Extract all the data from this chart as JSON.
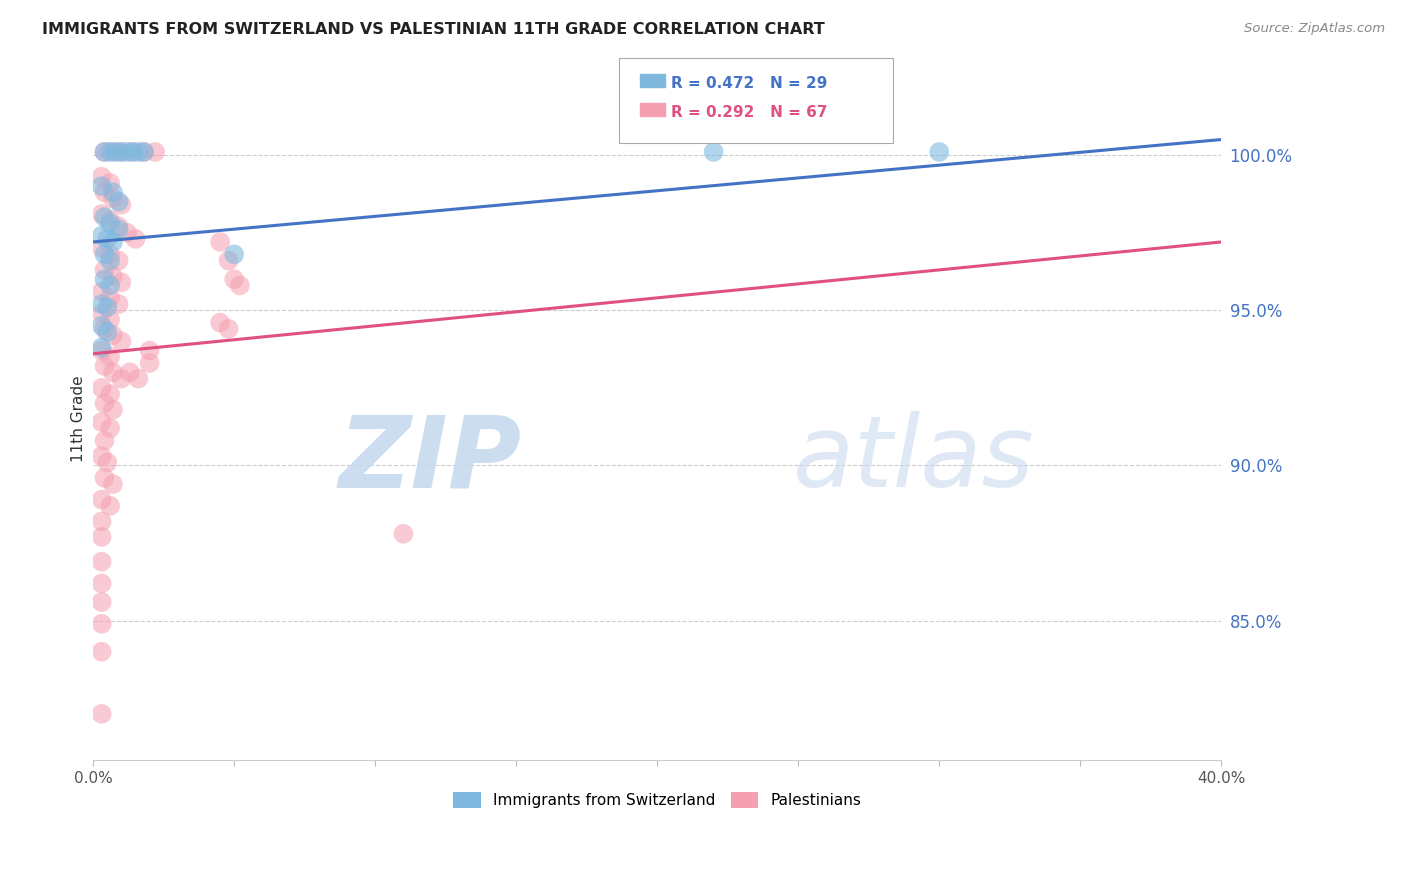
{
  "title": "IMMIGRANTS FROM SWITZERLAND VS PALESTINIAN 11TH GRADE CORRELATION CHART",
  "source": "Source: ZipAtlas.com",
  "ylabel": "11th Grade",
  "yaxis_labels": [
    "100.0%",
    "95.0%",
    "90.0%",
    "85.0%"
  ],
  "yaxis_values": [
    1.0,
    0.95,
    0.9,
    0.85
  ],
  "xmin": 0.0,
  "xmax": 0.4,
  "ymin": 0.805,
  "ymax": 1.025,
  "legend_blue_R": "R = 0.472",
  "legend_blue_N": "N = 29",
  "legend_pink_R": "R = 0.292",
  "legend_pink_N": "N = 67",
  "watermark_zip": "ZIP",
  "watermark_atlas": "atlas",
  "blue_color": "#7fb9e0",
  "pink_color": "#f5a0b0",
  "blue_line_color": "#4472c4",
  "pink_line_color": "#e05080",
  "blue_line_x": [
    0.0,
    0.4
  ],
  "blue_line_y": [
    0.972,
    1.005
  ],
  "pink_line_x": [
    0.0,
    0.4
  ],
  "pink_line_y": [
    0.936,
    0.972
  ],
  "blue_scatter": [
    [
      0.004,
      1.001
    ],
    [
      0.006,
      1.001
    ],
    [
      0.008,
      1.001
    ],
    [
      0.01,
      1.001
    ],
    [
      0.012,
      1.001
    ],
    [
      0.014,
      1.001
    ],
    [
      0.016,
      1.001
    ],
    [
      0.018,
      1.001
    ],
    [
      0.003,
      0.99
    ],
    [
      0.007,
      0.988
    ],
    [
      0.009,
      0.985
    ],
    [
      0.004,
      0.98
    ],
    [
      0.006,
      0.978
    ],
    [
      0.009,
      0.976
    ],
    [
      0.003,
      0.974
    ],
    [
      0.005,
      0.973
    ],
    [
      0.007,
      0.972
    ],
    [
      0.004,
      0.968
    ],
    [
      0.006,
      0.966
    ],
    [
      0.004,
      0.96
    ],
    [
      0.006,
      0.958
    ],
    [
      0.003,
      0.952
    ],
    [
      0.005,
      0.951
    ],
    [
      0.05,
      0.968
    ],
    [
      0.22,
      1.001
    ],
    [
      0.3,
      1.001
    ],
    [
      0.003,
      0.945
    ],
    [
      0.005,
      0.943
    ],
    [
      0.003,
      0.938
    ]
  ],
  "pink_scatter": [
    [
      0.004,
      1.001
    ],
    [
      0.007,
      1.001
    ],
    [
      0.01,
      1.001
    ],
    [
      0.014,
      1.001
    ],
    [
      0.018,
      1.001
    ],
    [
      0.022,
      1.001
    ],
    [
      0.003,
      0.993
    ],
    [
      0.006,
      0.991
    ],
    [
      0.004,
      0.988
    ],
    [
      0.007,
      0.986
    ],
    [
      0.01,
      0.984
    ],
    [
      0.003,
      0.981
    ],
    [
      0.006,
      0.979
    ],
    [
      0.009,
      0.977
    ],
    [
      0.012,
      0.975
    ],
    [
      0.015,
      0.973
    ],
    [
      0.003,
      0.97
    ],
    [
      0.006,
      0.968
    ],
    [
      0.009,
      0.966
    ],
    [
      0.004,
      0.963
    ],
    [
      0.007,
      0.961
    ],
    [
      0.01,
      0.959
    ],
    [
      0.003,
      0.956
    ],
    [
      0.006,
      0.954
    ],
    [
      0.009,
      0.952
    ],
    [
      0.003,
      0.949
    ],
    [
      0.006,
      0.947
    ],
    [
      0.004,
      0.944
    ],
    [
      0.007,
      0.942
    ],
    [
      0.01,
      0.94
    ],
    [
      0.003,
      0.937
    ],
    [
      0.006,
      0.935
    ],
    [
      0.004,
      0.932
    ],
    [
      0.007,
      0.93
    ],
    [
      0.01,
      0.928
    ],
    [
      0.003,
      0.925
    ],
    [
      0.006,
      0.923
    ],
    [
      0.004,
      0.92
    ],
    [
      0.007,
      0.918
    ],
    [
      0.013,
      0.93
    ],
    [
      0.016,
      0.928
    ],
    [
      0.003,
      0.914
    ],
    [
      0.006,
      0.912
    ],
    [
      0.004,
      0.908
    ],
    [
      0.003,
      0.903
    ],
    [
      0.005,
      0.901
    ],
    [
      0.004,
      0.896
    ],
    [
      0.007,
      0.894
    ],
    [
      0.003,
      0.889
    ],
    [
      0.006,
      0.887
    ],
    [
      0.045,
      0.972
    ],
    [
      0.048,
      0.966
    ],
    [
      0.045,
      0.946
    ],
    [
      0.048,
      0.944
    ],
    [
      0.05,
      0.96
    ],
    [
      0.052,
      0.958
    ],
    [
      0.003,
      0.882
    ],
    [
      0.003,
      0.877
    ],
    [
      0.003,
      0.869
    ],
    [
      0.003,
      0.862
    ],
    [
      0.003,
      0.856
    ],
    [
      0.003,
      0.849
    ],
    [
      0.003,
      0.84
    ],
    [
      0.11,
      0.878
    ],
    [
      0.003,
      0.82
    ],
    [
      0.02,
      0.937
    ],
    [
      0.02,
      0.933
    ]
  ]
}
